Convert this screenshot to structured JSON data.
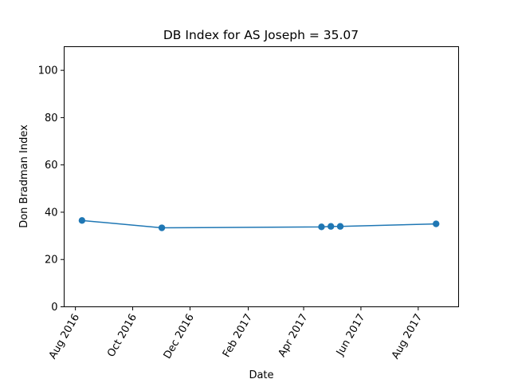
{
  "chart_data": {
    "type": "line",
    "title": "DB Index for AS Joseph = 35.07",
    "xlabel": "Date",
    "ylabel": "Don Bradman Index",
    "ylim": [
      0,
      110
    ],
    "xlim": [
      "2016-07-20",
      "2017-09-13"
    ],
    "yticks": [
      0,
      20,
      40,
      60,
      80,
      100
    ],
    "xticks": [
      {
        "date": "2016-08-01",
        "label": "Aug 2016"
      },
      {
        "date": "2016-10-01",
        "label": "Oct 2016"
      },
      {
        "date": "2016-12-01",
        "label": "Dec 2016"
      },
      {
        "date": "2017-02-01",
        "label": "Feb 2017"
      },
      {
        "date": "2017-04-01",
        "label": "Apr 2017"
      },
      {
        "date": "2017-06-01",
        "label": "Jun 2017"
      },
      {
        "date": "2017-08-01",
        "label": "Aug 2017"
      }
    ],
    "grid": false,
    "color": "#1f77b4",
    "series": [
      {
        "points": [
          {
            "x": "2016-08-08",
            "y": 36.5
          },
          {
            "x": "2016-11-01",
            "y": 33.4
          },
          {
            "x": "2017-04-20",
            "y": 33.8
          },
          {
            "x": "2017-04-30",
            "y": 34.0
          },
          {
            "x": "2017-05-10",
            "y": 34.0
          },
          {
            "x": "2017-08-20",
            "y": 35.07
          }
        ]
      }
    ]
  }
}
